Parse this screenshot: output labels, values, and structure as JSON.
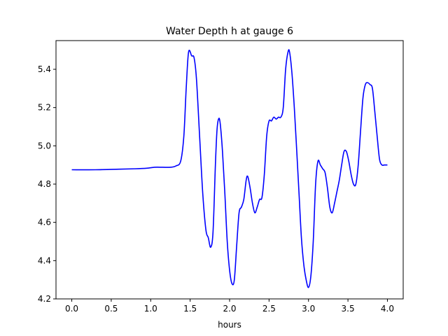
{
  "chart_data": {
    "type": "line",
    "title": "Water Depth h at gauge 6",
    "xlabel": "hours",
    "ylabel": "",
    "xlim": [
      -0.2,
      4.2
    ],
    "ylim": [
      4.2,
      5.55
    ],
    "xticks": [
      0.0,
      0.5,
      1.0,
      1.5,
      2.0,
      2.5,
      3.0,
      3.5,
      4.0
    ],
    "xtick_labels": [
      "0.0",
      "0.5",
      "1.0",
      "1.5",
      "2.0",
      "2.5",
      "3.0",
      "3.5",
      "4.0"
    ],
    "yticks": [
      4.2,
      4.4,
      4.6,
      4.8,
      5.0,
      5.2,
      5.4
    ],
    "ytick_labels": [
      "4.2",
      "4.4",
      "4.6",
      "4.8",
      "5.0",
      "5.2",
      "5.4"
    ],
    "grid": false,
    "legend": "none",
    "series": [
      {
        "color": "#0000ff",
        "x": [
          0.0,
          0.3,
          0.6,
          0.8,
          0.95,
          1.05,
          1.15,
          1.25,
          1.32,
          1.38,
          1.42,
          1.45,
          1.48,
          1.52,
          1.55,
          1.58,
          1.62,
          1.66,
          1.7,
          1.73,
          1.76,
          1.79,
          1.82,
          1.84,
          1.86,
          1.88,
          1.91,
          1.94,
          1.97,
          2.0,
          2.03,
          2.06,
          2.09,
          2.12,
          2.15,
          2.18,
          2.21,
          2.23,
          2.26,
          2.29,
          2.32,
          2.35,
          2.38,
          2.41,
          2.44,
          2.47,
          2.5,
          2.53,
          2.56,
          2.59,
          2.62,
          2.65,
          2.68,
          2.71,
          2.74,
          2.76,
          2.79,
          2.82,
          2.85,
          2.88,
          2.91,
          2.94,
          2.97,
          3.0,
          3.03,
          3.06,
          3.09,
          3.12,
          3.15,
          3.18,
          3.21,
          3.24,
          3.27,
          3.3,
          3.33,
          3.36,
          3.39,
          3.42,
          3.45,
          3.48,
          3.51,
          3.54,
          3.57,
          3.6,
          3.63,
          3.66,
          3.69,
          3.72,
          3.75,
          3.78,
          3.81,
          3.84,
          3.87,
          3.9,
          3.93,
          3.96,
          4.0
        ],
        "y": [
          4.875,
          4.875,
          4.878,
          4.88,
          4.883,
          4.888,
          4.888,
          4.888,
          4.895,
          4.92,
          5.05,
          5.3,
          5.49,
          5.47,
          5.46,
          5.35,
          5.05,
          4.75,
          4.56,
          4.52,
          4.47,
          4.55,
          4.9,
          5.08,
          5.14,
          5.12,
          4.97,
          4.75,
          4.5,
          4.35,
          4.28,
          4.3,
          4.48,
          4.65,
          4.68,
          4.72,
          4.82,
          4.84,
          4.78,
          4.7,
          4.65,
          4.68,
          4.72,
          4.73,
          4.85,
          5.05,
          5.13,
          5.13,
          5.15,
          5.14,
          5.15,
          5.15,
          5.2,
          5.4,
          5.49,
          5.49,
          5.38,
          5.2,
          4.98,
          4.75,
          4.52,
          4.38,
          4.3,
          4.26,
          4.32,
          4.5,
          4.8,
          4.92,
          4.9,
          4.88,
          4.86,
          4.78,
          4.68,
          4.65,
          4.7,
          4.76,
          4.82,
          4.9,
          4.97,
          4.97,
          4.92,
          4.85,
          4.8,
          4.8,
          4.9,
          5.08,
          5.25,
          5.32,
          5.33,
          5.32,
          5.3,
          5.18,
          5.05,
          4.93,
          4.9,
          4.9,
          4.9
        ]
      }
    ]
  }
}
